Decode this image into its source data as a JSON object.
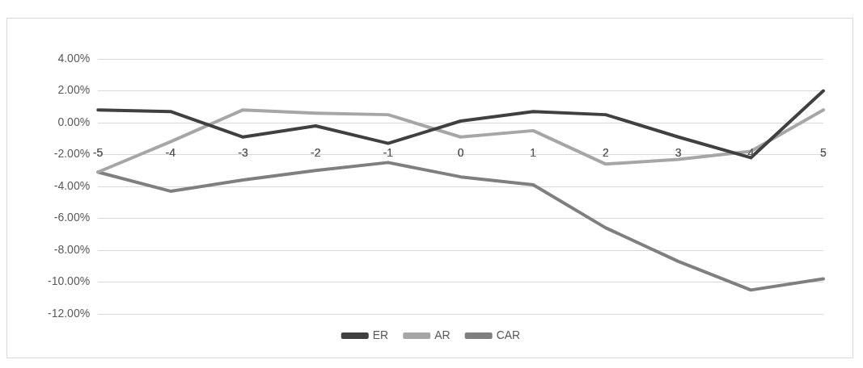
{
  "chart_data": {
    "type": "line",
    "categories": [
      "-5",
      "-4",
      "-3",
      "-2",
      "-1",
      "0",
      "1",
      "2",
      "3",
      "4",
      "5"
    ],
    "series": [
      {
        "name": "ER",
        "color": "#404040",
        "values": [
          0.8,
          0.7,
          -0.9,
          -0.2,
          -1.3,
          0.1,
          0.7,
          0.5,
          -0.9,
          -2.2,
          2.0
        ]
      },
      {
        "name": "AR",
        "color": "#a6a6a6",
        "values": [
          -3.1,
          -1.2,
          0.8,
          0.6,
          0.5,
          -0.9,
          -0.5,
          -2.6,
          -2.3,
          -1.8,
          0.8
        ]
      },
      {
        "name": "CAR",
        "color": "#7f7f7f",
        "values": [
          -3.1,
          -4.3,
          -3.6,
          -3.0,
          -2.5,
          -3.4,
          -3.9,
          -6.6,
          -8.7,
          -10.5,
          -9.8
        ]
      }
    ],
    "ylim": [
      -12,
      4
    ],
    "yticks": [
      {
        "value": -12,
        "label": "-12.00%"
      },
      {
        "value": -10,
        "label": "-10.00%"
      },
      {
        "value": -8,
        "label": "-8.00%"
      },
      {
        "value": -6,
        "label": "-6.00%"
      },
      {
        "value": -4,
        "label": "-4.00%"
      },
      {
        "value": -2,
        "label": "-2.00%"
      },
      {
        "value": 0,
        "label": "0.00%"
      },
      {
        "value": 2,
        "label": "2.00%"
      },
      {
        "value": 4,
        "label": "4.00%"
      }
    ],
    "grid": "y",
    "legend": "bottom",
    "marker": "none",
    "line_style": "solid"
  }
}
